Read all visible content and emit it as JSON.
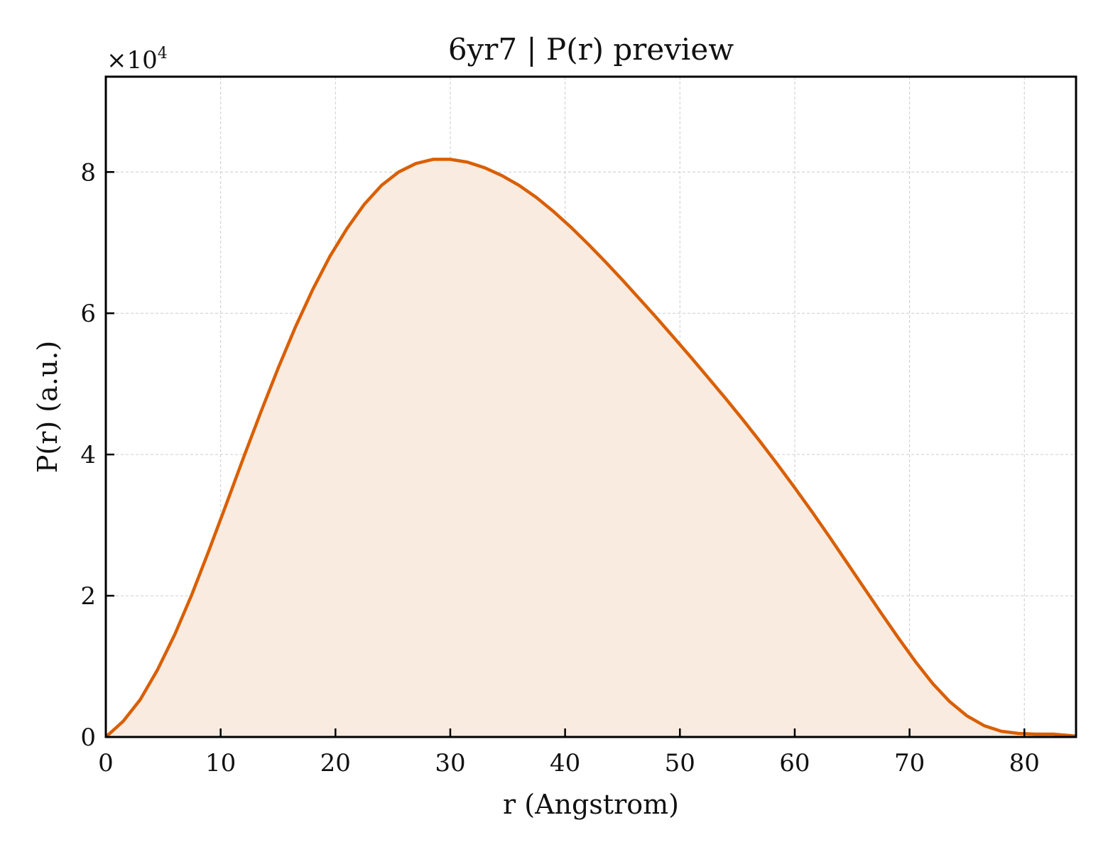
{
  "chart_data": {
    "type": "area",
    "title": "6yr7 | P(r) preview",
    "xlabel": "r (Angstrom)",
    "ylabel": "P(r) (a.u.)",
    "y_multiplier": {
      "base": "×10",
      "exponent": "4"
    },
    "xlim": [
      0,
      84.5
    ],
    "ylim": [
      0,
      9.35
    ],
    "x_ticks": [
      0,
      10,
      20,
      30,
      40,
      50,
      60,
      70,
      80
    ],
    "y_ticks": [
      0,
      2,
      4,
      6,
      8
    ],
    "grid": true,
    "colors": {
      "line": "#d95f02",
      "fill": "#f9ebe0",
      "grid": "#cccccc"
    },
    "series": [
      {
        "x": [
          0,
          1.5,
          3,
          4.5,
          6,
          7.5,
          9,
          10.5,
          12,
          13.5,
          15,
          16.5,
          18,
          19.5,
          21,
          22.5,
          24,
          25.5,
          27,
          28.5,
          30,
          31.5,
          33,
          34.5,
          36,
          37.5,
          39,
          40.5,
          42,
          43.5,
          45,
          46.5,
          48,
          49.5,
          51,
          52.5,
          54,
          55.5,
          57,
          58.5,
          60,
          61.5,
          63,
          64.5,
          66,
          67.5,
          69,
          70.5,
          72,
          73.5,
          75,
          76.5,
          78,
          79.5,
          81,
          82.5,
          84,
          84.5
        ],
        "values": [
          0,
          0.22,
          0.53,
          0.95,
          1.45,
          2.02,
          2.65,
          3.3,
          3.96,
          4.6,
          5.22,
          5.8,
          6.33,
          6.8,
          7.2,
          7.54,
          7.81,
          8.0,
          8.12,
          8.18,
          8.18,
          8.14,
          8.06,
          7.95,
          7.81,
          7.64,
          7.44,
          7.22,
          6.98,
          6.73,
          6.47,
          6.2,
          5.93,
          5.65,
          5.37,
          5.08,
          4.79,
          4.49,
          4.18,
          3.86,
          3.53,
          3.19,
          2.84,
          2.48,
          2.12,
          1.76,
          1.41,
          1.07,
          0.76,
          0.5,
          0.3,
          0.16,
          0.08,
          0.05,
          0.04,
          0.04,
          0.02,
          0.01
        ]
      }
    ]
  }
}
